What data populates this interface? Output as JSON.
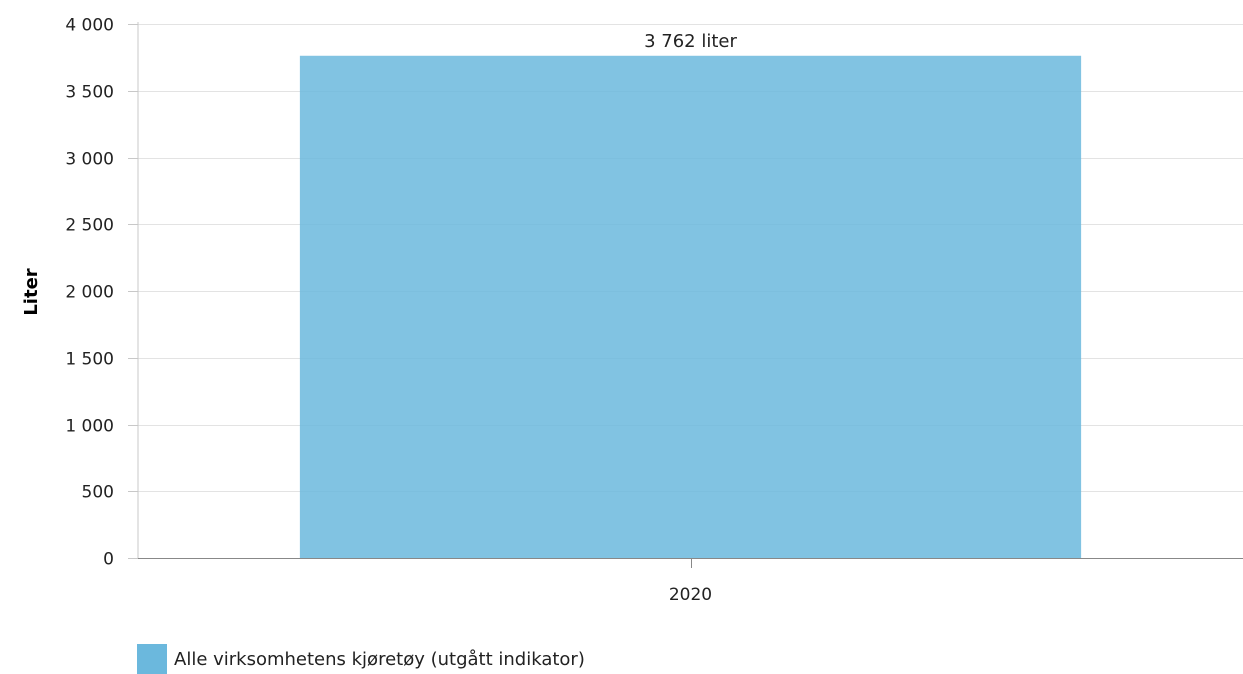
{
  "chart_data": {
    "type": "bar",
    "categories": [
      "2020"
    ],
    "series": [
      {
        "name": "Alle virksomhetens kjøretøy (utgått indikator)",
        "values": [
          3762
        ],
        "data_labels": [
          "3 762 liter"
        ],
        "color": "#6bb8dd"
      }
    ],
    "ylabel": "Liter",
    "xlabel": "",
    "ylim": [
      0,
      4000
    ],
    "yticks": [
      0,
      500,
      1000,
      1500,
      2000,
      2500,
      3000,
      3500,
      4000
    ],
    "ytick_labels": [
      "0",
      "500",
      "1 000",
      "1 500",
      "2 000",
      "2 500",
      "3 000",
      "3 500",
      "4 000"
    ],
    "grid": true,
    "legend_position": "bottom-left"
  }
}
